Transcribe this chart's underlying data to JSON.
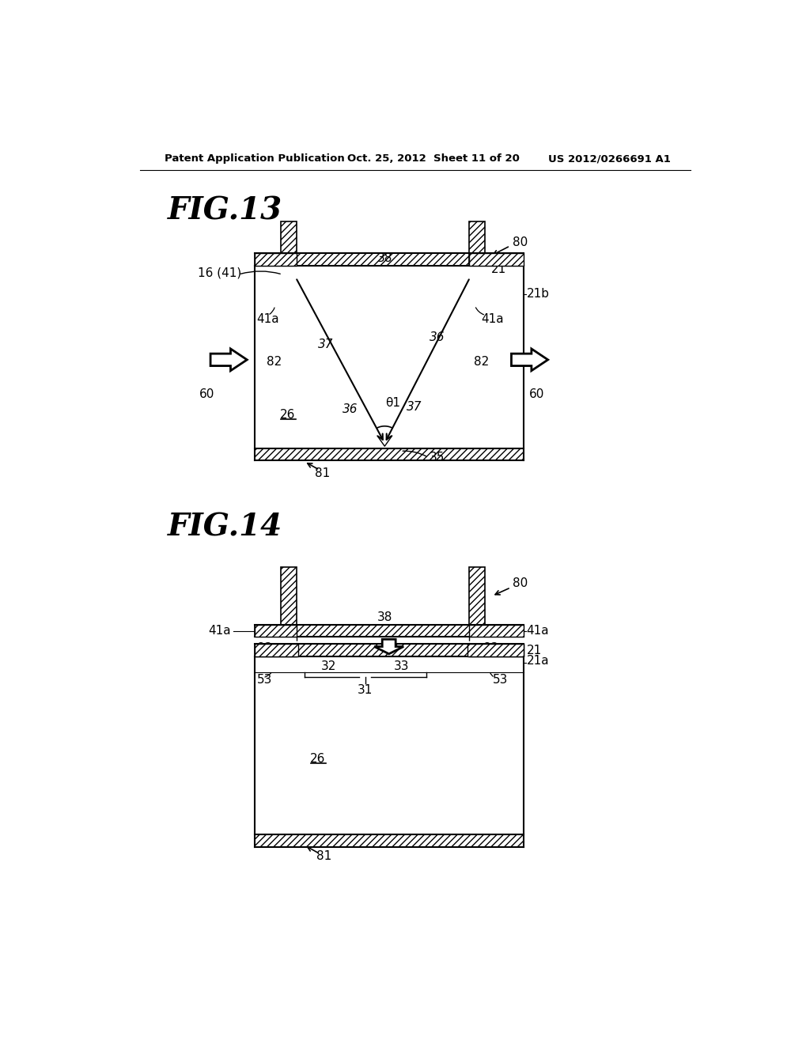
{
  "bg_color": "#ffffff",
  "header_left": "Patent Application Publication",
  "header_center": "Oct. 25, 2012  Sheet 11 of 20",
  "header_right": "US 2012/0266691 A1",
  "fig13_title": "FIG.13",
  "fig14_title": "FIG.14"
}
